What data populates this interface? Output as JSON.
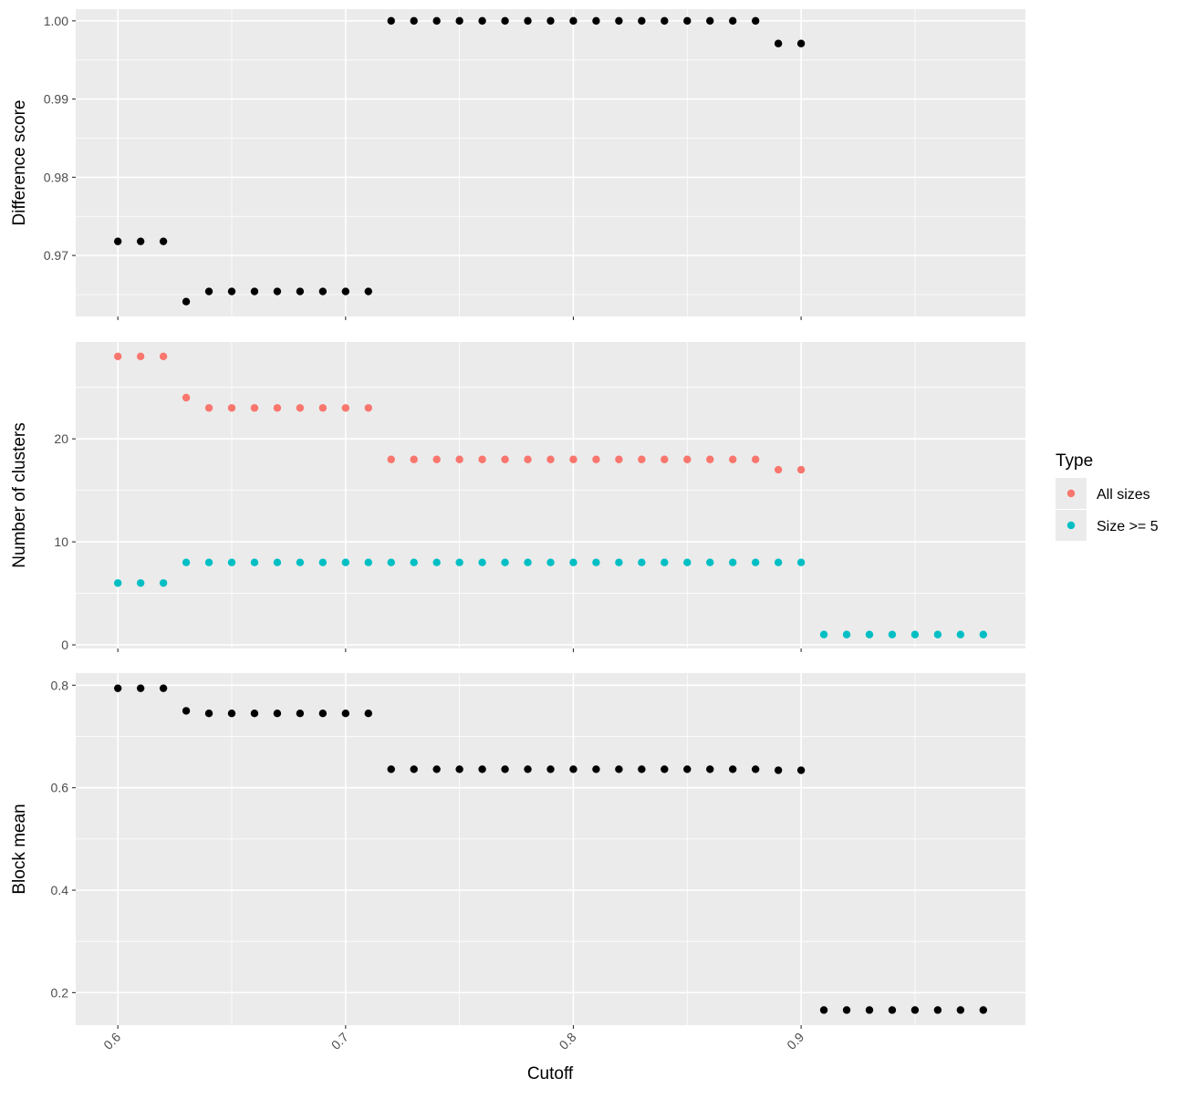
{
  "chart_data": {
    "type": "scatter",
    "xlabel": "Cutoff",
    "x_ticks": [
      "0.6",
      "0.7",
      "0.8",
      "0.9"
    ],
    "xlim": [
      0.5815,
      0.9985
    ],
    "legend": {
      "title": "Type",
      "placement": "right",
      "entries": [
        {
          "label": "All sizes",
          "color": "#F8766D"
        },
        {
          "label": "Size >= 5",
          "color": "#00BFC4"
        }
      ]
    },
    "panels": [
      {
        "ylabel": "Difference score",
        "ylim": [
          0.9622,
          1.0015
        ],
        "y_ticks": [
          "0.97",
          "0.98",
          "0.99",
          "1.00"
        ],
        "series": [
          {
            "color": "#000000",
            "x": [
              0.6,
              0.61,
              0.62,
              0.63,
              0.64,
              0.65,
              0.66,
              0.67,
              0.68,
              0.69,
              0.7,
              0.71,
              0.72,
              0.73,
              0.74,
              0.75,
              0.76,
              0.77,
              0.78,
              0.79,
              0.8,
              0.81,
              0.82,
              0.83,
              0.84,
              0.85,
              0.86,
              0.87,
              0.88,
              0.89,
              0.9
            ],
            "y": [
              0.9718,
              0.9718,
              0.9718,
              0.9641,
              0.9654,
              0.9654,
              0.9654,
              0.9654,
              0.9654,
              0.9654,
              0.9654,
              0.9654,
              1.0,
              1.0,
              1.0,
              1.0,
              1.0,
              1.0,
              1.0,
              1.0,
              1.0,
              1.0,
              1.0,
              1.0,
              1.0,
              1.0,
              1.0,
              1.0,
              1.0,
              0.9971,
              0.9971
            ]
          }
        ]
      },
      {
        "ylabel": "Number of clusters",
        "ylim": [
          -0.35,
          29.4
        ],
        "y_ticks": [
          "0",
          "10",
          "20"
        ],
        "series": [
          {
            "name": "All sizes",
            "color": "#F8766D",
            "x": [
              0.6,
              0.61,
              0.62,
              0.63,
              0.64,
              0.65,
              0.66,
              0.67,
              0.68,
              0.69,
              0.7,
              0.71,
              0.72,
              0.73,
              0.74,
              0.75,
              0.76,
              0.77,
              0.78,
              0.79,
              0.8,
              0.81,
              0.82,
              0.83,
              0.84,
              0.85,
              0.86,
              0.87,
              0.88,
              0.89,
              0.9
            ],
            "y": [
              28,
              28,
              28,
              24,
              23,
              23,
              23,
              23,
              23,
              23,
              23,
              23,
              18,
              18,
              18,
              18,
              18,
              18,
              18,
              18,
              18,
              18,
              18,
              18,
              18,
              18,
              18,
              18,
              18,
              17,
              17
            ]
          },
          {
            "name": "Size >= 5",
            "color": "#00BFC4",
            "x": [
              0.6,
              0.61,
              0.62,
              0.63,
              0.64,
              0.65,
              0.66,
              0.67,
              0.68,
              0.69,
              0.7,
              0.71,
              0.72,
              0.73,
              0.74,
              0.75,
              0.76,
              0.77,
              0.78,
              0.79,
              0.8,
              0.81,
              0.82,
              0.83,
              0.84,
              0.85,
              0.86,
              0.87,
              0.88,
              0.89,
              0.9,
              0.91,
              0.92,
              0.93,
              0.94,
              0.95,
              0.96,
              0.97,
              0.98
            ],
            "y": [
              6,
              6,
              6,
              8,
              8,
              8,
              8,
              8,
              8,
              8,
              8,
              8,
              8,
              8,
              8,
              8,
              8,
              8,
              8,
              8,
              8,
              8,
              8,
              8,
              8,
              8,
              8,
              8,
              8,
              8,
              8,
              1,
              1,
              1,
              1,
              1,
              1,
              1,
              1
            ]
          }
        ]
      },
      {
        "ylabel": "Block mean",
        "ylim": [
          0.1366,
          0.8237
        ],
        "y_ticks": [
          "0.2",
          "0.4",
          "0.6",
          "0.8"
        ],
        "series": [
          {
            "color": "#000000",
            "x": [
              0.6,
              0.61,
              0.62,
              0.63,
              0.64,
              0.65,
              0.66,
              0.67,
              0.68,
              0.69,
              0.7,
              0.71,
              0.72,
              0.73,
              0.74,
              0.75,
              0.76,
              0.77,
              0.78,
              0.79,
              0.8,
              0.81,
              0.82,
              0.83,
              0.84,
              0.85,
              0.86,
              0.87,
              0.88,
              0.89,
              0.9,
              0.91,
              0.92,
              0.93,
              0.94,
              0.95,
              0.96,
              0.97,
              0.98
            ],
            "y": [
              0.794,
              0.794,
              0.794,
              0.75,
              0.745,
              0.745,
              0.745,
              0.745,
              0.745,
              0.745,
              0.745,
              0.745,
              0.636,
              0.636,
              0.636,
              0.636,
              0.636,
              0.636,
              0.636,
              0.636,
              0.636,
              0.636,
              0.636,
              0.636,
              0.636,
              0.636,
              0.636,
              0.636,
              0.636,
              0.634,
              0.634,
              0.166,
              0.166,
              0.166,
              0.166,
              0.166,
              0.166,
              0.166,
              0.166
            ]
          }
        ]
      }
    ]
  }
}
